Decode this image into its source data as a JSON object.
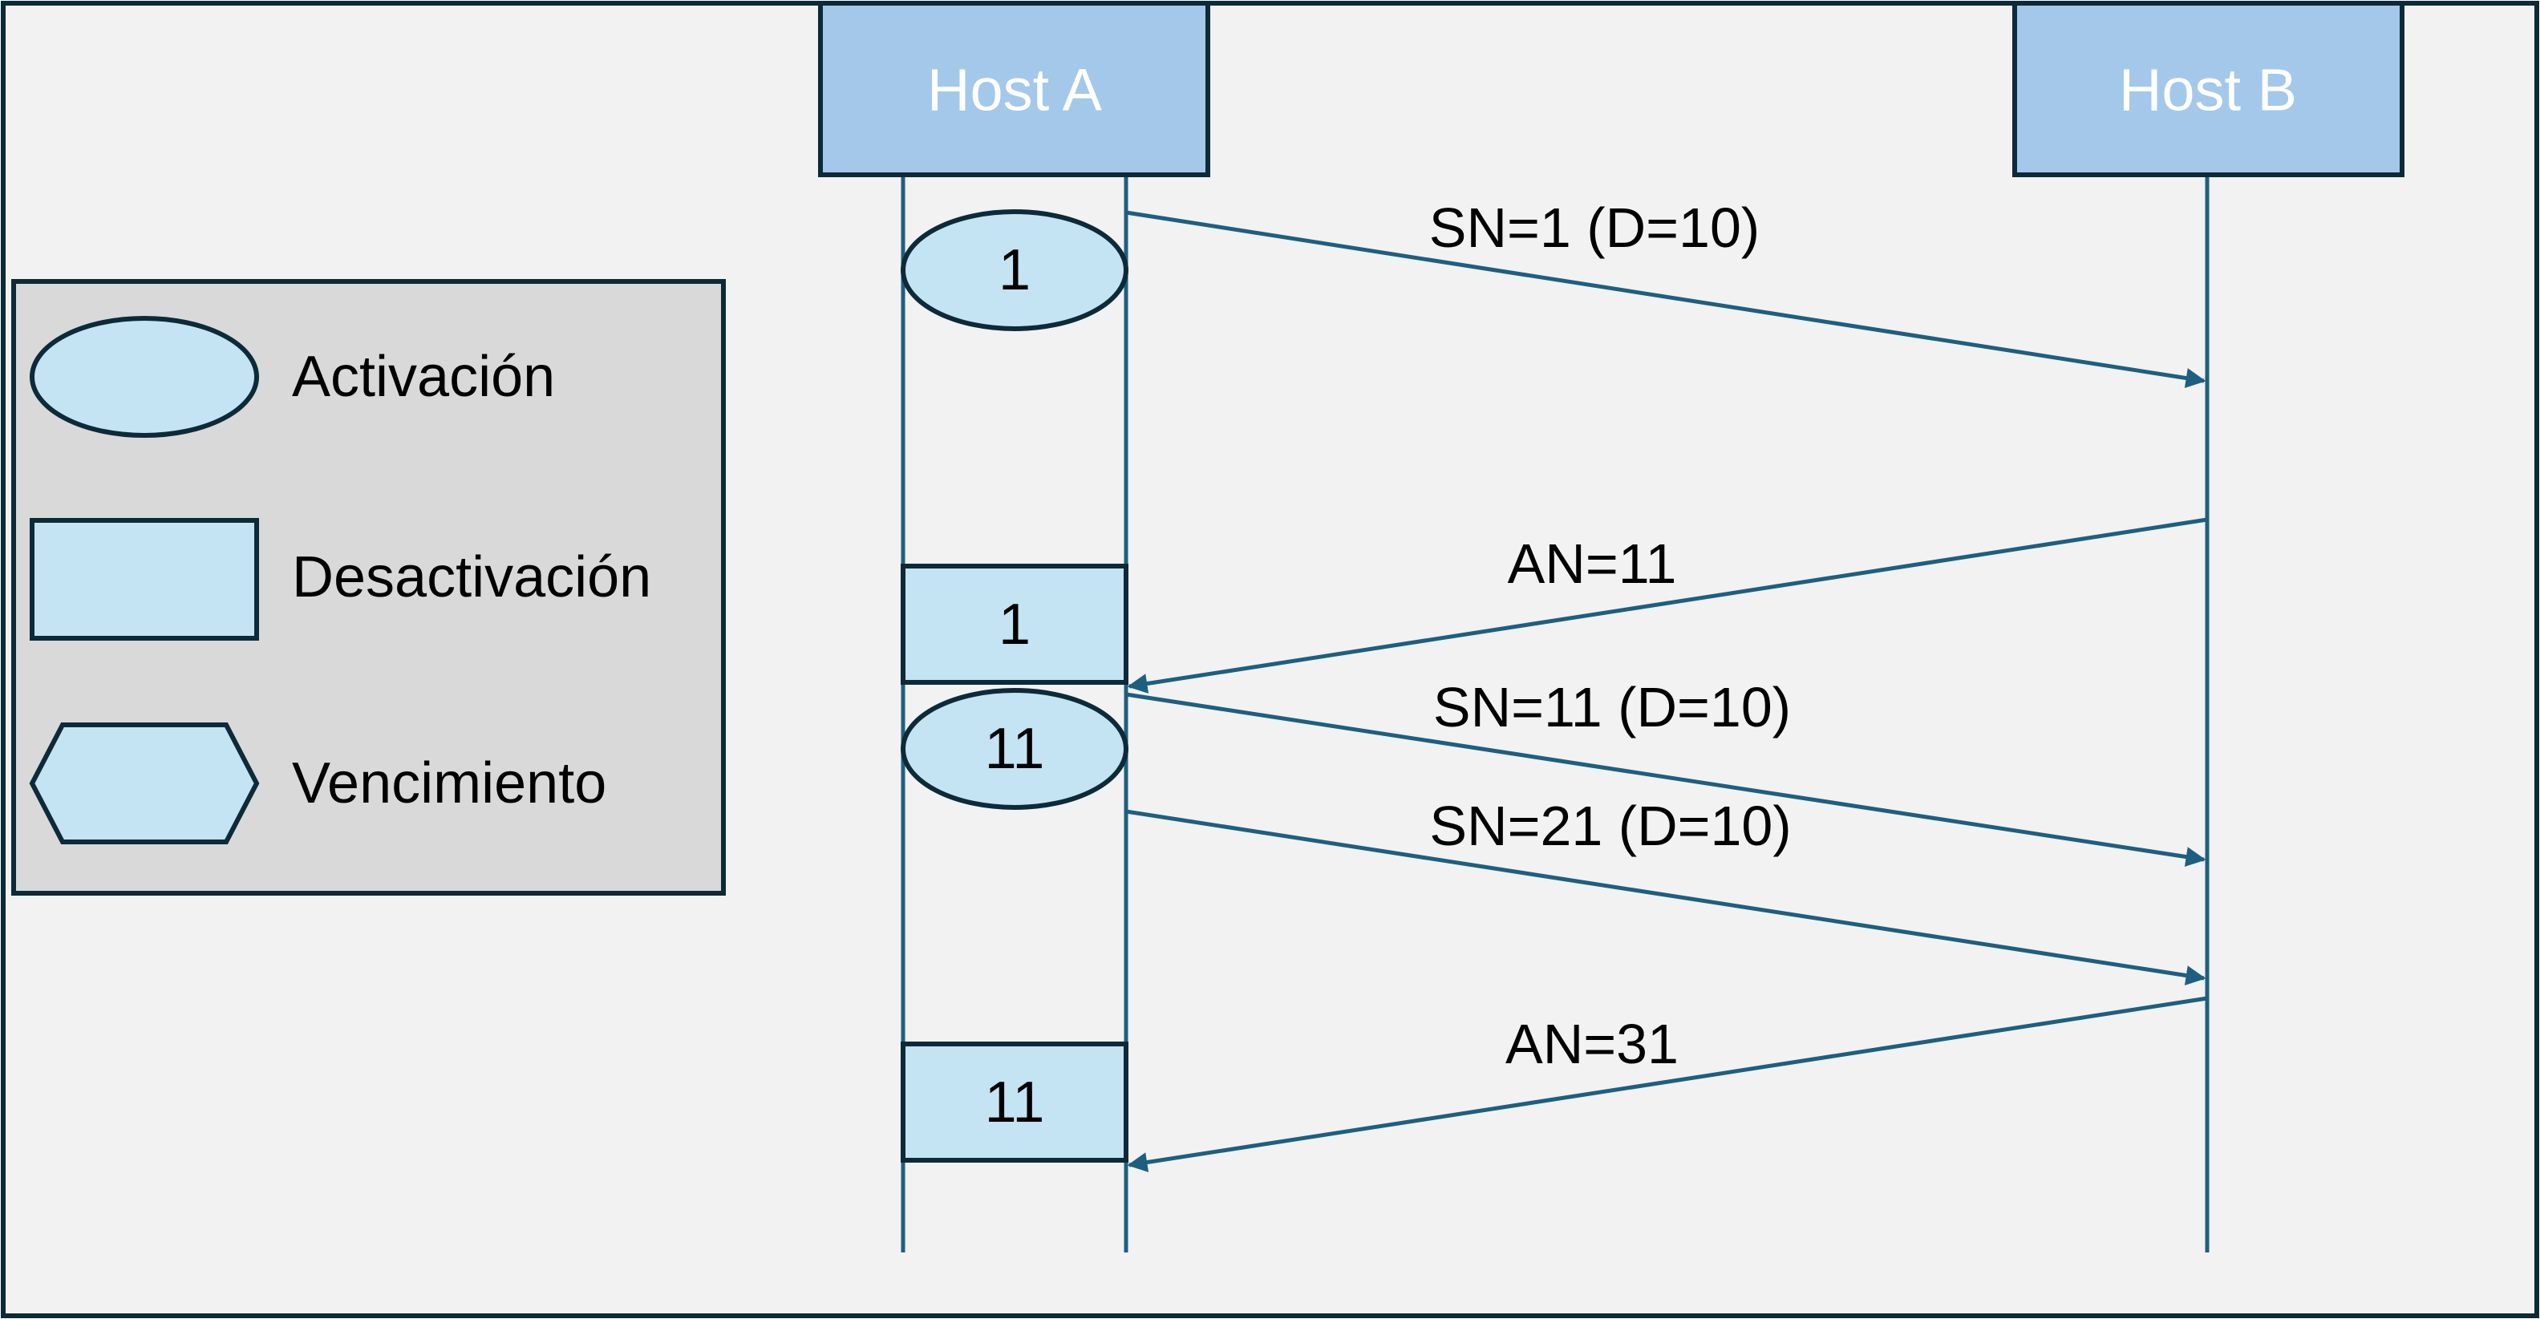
{
  "hosts": {
    "a": {
      "title": "Host A"
    },
    "b": {
      "title": "Host B"
    }
  },
  "legend": {
    "activation": "Activación",
    "deactivation": "Desactivación",
    "expiry": "Vencimiento"
  },
  "markers": {
    "activation_1": "1",
    "deactivation_1": "1",
    "activation_11": "11",
    "deactivation_11": "11"
  },
  "messages": {
    "sn1": "SN=1 (D=10)",
    "an11": "AN=11",
    "sn11": "SN=11 (D=10)",
    "sn21": "SN=21 (D=10)",
    "an31": "AN=31"
  },
  "colors": {
    "background": "#f2f2f2",
    "border": "#0d2a38",
    "host_box": "#a4c8ea",
    "lifeline": "#1f5f80",
    "message_arrow": "#1d5f80",
    "shape_fill": "#c4e3f3",
    "legend_fill": "#d9d9d9"
  }
}
